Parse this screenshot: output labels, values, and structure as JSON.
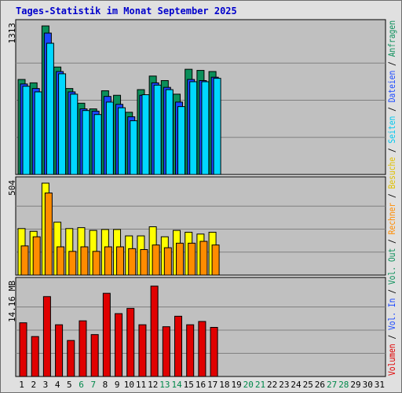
{
  "title": "Tages-Statistik im Monat September 2025",
  "colors": {
    "plot_bg": "#c0c0c0",
    "grid": "#808080",
    "anfragen": "#0a8f5a",
    "dateien": "#1a48ff",
    "seiten": "#00d8ff",
    "besuche": "#ffff00",
    "rechner": "#ff8c00",
    "vol_in": "#1a48ff",
    "vol_out": "#0a8f5a",
    "volumen": "#e00000",
    "weekend_day": "#00884a",
    "weekday": "#000000"
  },
  "chart_data": [
    {
      "type": "bar",
      "name": "requests",
      "ymax_label": "1313",
      "ylim": [
        0,
        1313
      ],
      "x": [
        1,
        2,
        3,
        4,
        5,
        6,
        7,
        8,
        9,
        10,
        11,
        12,
        13,
        14,
        15,
        16,
        17
      ],
      "series": [
        {
          "name": "Anfragen",
          "values": [
            840,
            810,
            1313,
            950,
            760,
            630,
            580,
            740,
            700,
            550,
            750,
            870,
            830,
            710,
            930,
            920,
            910
          ]
        },
        {
          "name": "Dateien",
          "values": [
            800,
            760,
            1250,
            910,
            730,
            580,
            560,
            690,
            620,
            510,
            700,
            810,
            770,
            640,
            840,
            830,
            860
          ]
        },
        {
          "name": "Seiten",
          "values": [
            780,
            730,
            1160,
            890,
            710,
            565,
            530,
            640,
            590,
            475,
            705,
            790,
            750,
            600,
            820,
            820,
            850
          ]
        }
      ]
    },
    {
      "type": "bar",
      "name": "visits",
      "ymax_label": "504",
      "ylim": [
        0,
        504
      ],
      "x": [
        1,
        2,
        3,
        4,
        5,
        6,
        7,
        8,
        9,
        10,
        11,
        12,
        13,
        14,
        15,
        16,
        17
      ],
      "series": [
        {
          "name": "Besuche",
          "values": [
            255,
            240,
            504,
            290,
            255,
            260,
            245,
            250,
            250,
            215,
            215,
            265,
            210,
            245,
            235,
            225,
            235
          ]
        },
        {
          "name": "Rechner",
          "values": [
            160,
            210,
            450,
            155,
            130,
            155,
            130,
            155,
            155,
            145,
            140,
            165,
            150,
            175,
            175,
            185,
            165
          ]
        }
      ]
    },
    {
      "type": "bar",
      "name": "volume",
      "ymax_label": "14.16 MB",
      "ylim": [
        0,
        14.16
      ],
      "x": [
        1,
        2,
        3,
        4,
        5,
        6,
        7,
        8,
        9,
        10,
        11,
        12,
        13,
        14,
        15,
        16,
        17
      ],
      "series": [
        {
          "name": "Volumen",
          "values": [
            8.2,
            6.1,
            12.2,
            7.9,
            5.5,
            8.5,
            6.4,
            12.7,
            9.6,
            10.4,
            7.9,
            13.8,
            7.6,
            9.2,
            7.9,
            8.4,
            7.5
          ]
        }
      ]
    }
  ],
  "x_tick_labels": [
    "1",
    "2",
    "3",
    "4",
    "5",
    "6",
    "7",
    "8",
    "9",
    "10",
    "11",
    "12",
    "13",
    "14",
    "15",
    "16",
    "17",
    "18",
    "19",
    "20",
    "21",
    "22",
    "23",
    "24",
    "25",
    "26",
    "27",
    "28",
    "29",
    "30",
    "31"
  ],
  "weekend_days": [
    6,
    7,
    13,
    14,
    20,
    21,
    27,
    28
  ],
  "legend_right": [
    {
      "text": "Volumen",
      "color": "#e00000"
    },
    {
      "text": " / ",
      "color": "#000000"
    },
    {
      "text": "Vol. In",
      "color": "#1a48ff"
    },
    {
      "text": " / ",
      "color": "#000000"
    },
    {
      "text": "Vol. Out",
      "color": "#0a8f5a"
    },
    {
      "text": " / ",
      "color": "#000000"
    },
    {
      "text": "Rechner",
      "color": "#ff8c00"
    },
    {
      "text": " / ",
      "color": "#000000"
    },
    {
      "text": "Besuche",
      "color": "#e0c000"
    },
    {
      "text": " / ",
      "color": "#000000"
    },
    {
      "text": "Seiten",
      "color": "#00c8f0"
    },
    {
      "text": " / ",
      "color": "#000000"
    },
    {
      "text": "Dateien",
      "color": "#1a48ff"
    },
    {
      "text": " / ",
      "color": "#000000"
    },
    {
      "text": "Anfragen",
      "color": "#0a8f5a"
    }
  ]
}
